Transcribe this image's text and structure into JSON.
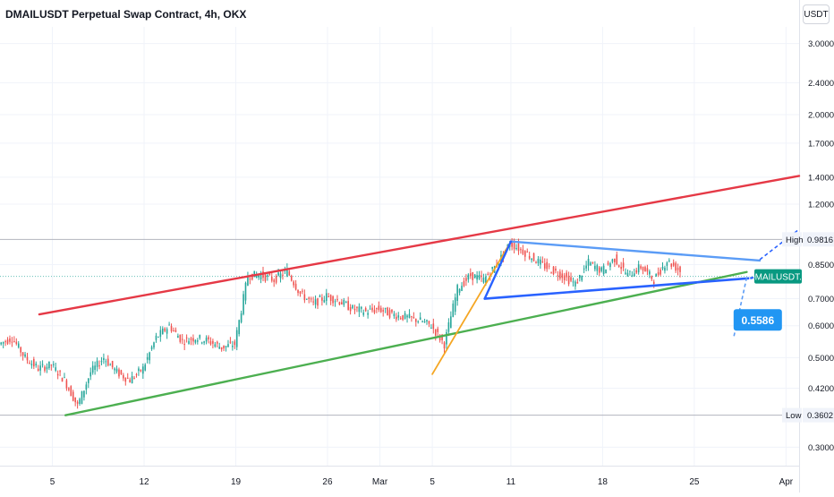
{
  "title": "DMAILUSDT Perpetual Swap Contract, 4h, OKX",
  "currency": "USDT",
  "colors": {
    "up": "#26a69a",
    "down": "#ef5350",
    "red_line": "#e53946",
    "green_line": "#4caf50",
    "orange_line": "#f5a623",
    "blue_line": "#2962ff",
    "light_blue_line": "#5b9cf6",
    "ticker_bg": "#089981",
    "callout_bg": "#2196f3"
  },
  "chart_data": {
    "type": "candlestick",
    "y_scale": "log",
    "ylim": [
      0.27,
      3.3
    ],
    "x_range": [
      "2024-02-01",
      "2024-04-02"
    ],
    "y_ticks": [
      "3.0000",
      "2.4000",
      "2.0000",
      "1.7000",
      "1.4000",
      "1.2000",
      "0.8500",
      "0.7000",
      "0.6000",
      "0.5000",
      "0.4200",
      "0.3000"
    ],
    "x_ticks": [
      "5",
      "12",
      "19",
      "26",
      "Mar",
      "5",
      "11",
      "18",
      "25",
      "Apr"
    ],
    "x_tick_dates": [
      "2024-02-05",
      "2024-02-12",
      "2024-02-19",
      "2024-02-26",
      "2024-03-01",
      "2024-03-05",
      "2024-03-11",
      "2024-03-18",
      "2024-03-25",
      "2024-04-01"
    ],
    "high": {
      "label": "High",
      "value": "0.9816"
    },
    "low": {
      "label": "Low",
      "value": "0.3602"
    },
    "last_price": {
      "symbol": "DMAILUSDT.P",
      "value": 0.795
    },
    "callout": "0.5586",
    "close_series": {
      "start": "2024-02-01",
      "points": [
        [
          "2024-02-01",
          0.54
        ],
        [
          "2024-02-02",
          0.56
        ],
        [
          "2024-02-03",
          0.5
        ],
        [
          "2024-02-04",
          0.47
        ],
        [
          "2024-02-05",
          0.48
        ],
        [
          "2024-02-06",
          0.44
        ],
        [
          "2024-02-07",
          0.38
        ],
        [
          "2024-02-08",
          0.46
        ],
        [
          "2024-02-09",
          0.5
        ],
        [
          "2024-02-10",
          0.46
        ],
        [
          "2024-02-11",
          0.44
        ],
        [
          "2024-02-12",
          0.47
        ],
        [
          "2024-02-13",
          0.56
        ],
        [
          "2024-02-14",
          0.6
        ],
        [
          "2024-02-15",
          0.55
        ],
        [
          "2024-02-16",
          0.56
        ],
        [
          "2024-02-17",
          0.55
        ],
        [
          "2024-02-18",
          0.53
        ],
        [
          "2024-02-19",
          0.54
        ],
        [
          "2024-02-20",
          0.8
        ],
        [
          "2024-02-21",
          0.8
        ],
        [
          "2024-02-22",
          0.78
        ],
        [
          "2024-02-23",
          0.82
        ],
        [
          "2024-02-24",
          0.72
        ],
        [
          "2024-02-25",
          0.68
        ],
        [
          "2024-02-26",
          0.71
        ],
        [
          "2024-02-27",
          0.69
        ],
        [
          "2024-02-28",
          0.66
        ],
        [
          "2024-02-29",
          0.65
        ],
        [
          "2024-03-01",
          0.66
        ],
        [
          "2024-03-02",
          0.64
        ],
        [
          "2024-03-03",
          0.63
        ],
        [
          "2024-03-04",
          0.62
        ],
        [
          "2024-03-05",
          0.6
        ],
        [
          "2024-03-06",
          0.54
        ],
        [
          "2024-03-07",
          0.74
        ],
        [
          "2024-03-08",
          0.8
        ],
        [
          "2024-03-09",
          0.78
        ],
        [
          "2024-03-10",
          0.85
        ],
        [
          "2024-03-11",
          0.96
        ],
        [
          "2024-03-12",
          0.92
        ],
        [
          "2024-03-13",
          0.87
        ],
        [
          "2024-03-14",
          0.83
        ],
        [
          "2024-03-15",
          0.8
        ],
        [
          "2024-03-16",
          0.76
        ],
        [
          "2024-03-17",
          0.86
        ],
        [
          "2024-03-18",
          0.82
        ],
        [
          "2024-03-19",
          0.88
        ],
        [
          "2024-03-20",
          0.8
        ],
        [
          "2024-03-21",
          0.84
        ],
        [
          "2024-03-22",
          0.78
        ],
        [
          "2024-03-23",
          0.87
        ],
        [
          "2024-03-24",
          0.82
        ]
      ]
    },
    "trendlines": [
      {
        "name": "red",
        "from": [
          "2024-02-04",
          0.64
        ],
        "to": [
          "2024-04-02",
          1.41
        ]
      },
      {
        "name": "green",
        "from": [
          "2024-02-06",
          0.36
        ],
        "to": [
          "2024-03-29",
          0.815
        ]
      },
      {
        "name": "orange",
        "from": [
          "2024-03-05",
          0.455
        ],
        "to": [
          "2024-03-11",
          0.97
        ]
      },
      {
        "name": "light-blue-upper",
        "from": [
          "2024-03-11",
          0.97
        ],
        "to": [
          "2024-03-30",
          0.87
        ]
      },
      {
        "name": "blue-triangle",
        "from": [
          "2024-03-09",
          0.7
        ],
        "to": [
          "2024-03-11",
          0.97
        ]
      },
      {
        "name": "blue-lower",
        "from": [
          "2024-03-09",
          0.7
        ],
        "to": [
          "2024-03-30",
          0.79
        ]
      }
    ]
  }
}
